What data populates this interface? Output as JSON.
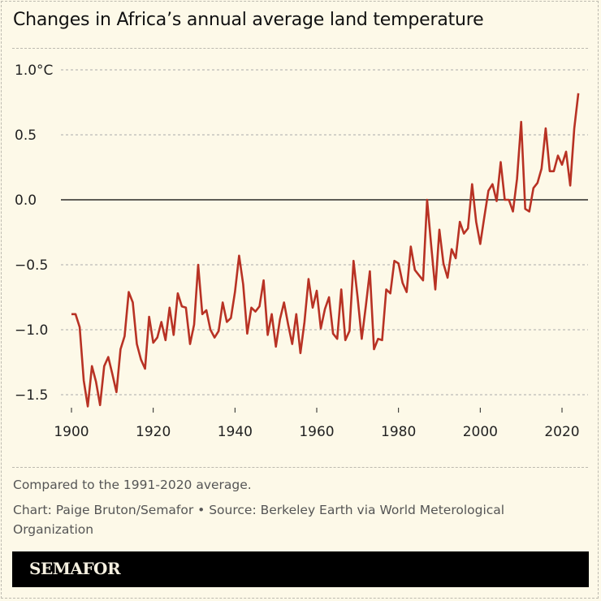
{
  "title": "Changes in Africa’s annual average land temperature",
  "notes": {
    "comparison": "Compared to the 1991-2020 average.",
    "credit": "Chart: Paige Bruton/Semafor • Source: Berkeley Earth via World Meterological Organization"
  },
  "brand": "SEMAFOR",
  "colors": {
    "line": "#b83224",
    "background": "#fdf9e8",
    "zero_line": "#000000",
    "grid": "#aaaaaa"
  },
  "chart_data": {
    "type": "line",
    "title": "Changes in Africa’s annual average land temperature",
    "xlabel": "",
    "ylabel": "",
    "xlim": [
      1900,
      2024
    ],
    "ylim": [
      -1.5,
      1.0
    ],
    "grid": true,
    "y_ticks": [
      1.0,
      0.5,
      0.0,
      -0.5,
      -1.0,
      -1.5
    ],
    "y_tick_labels": [
      "1.0°C",
      "0.5",
      "0.0",
      "−0.5",
      "−1.0",
      "−1.5"
    ],
    "x_ticks": [
      1900,
      1920,
      1940,
      1960,
      1980,
      2000,
      2020
    ],
    "x_tick_labels": [
      "1900",
      "1920",
      "1940",
      "1960",
      "1980",
      "2000",
      "2020"
    ],
    "x_start": 1900,
    "values": [
      -0.88,
      -0.88,
      -0.98,
      -1.39,
      -1.59,
      -1.28,
      -1.4,
      -1.58,
      -1.28,
      -1.21,
      -1.34,
      -1.48,
      -1.15,
      -1.05,
      -0.71,
      -0.79,
      -1.11,
      -1.23,
      -1.3,
      -0.9,
      -1.1,
      -1.06,
      -0.94,
      -1.08,
      -0.83,
      -1.04,
      -0.72,
      -0.82,
      -0.83,
      -1.11,
      -0.96,
      -0.5,
      -0.88,
      -0.85,
      -1.0,
      -1.06,
      -1.01,
      -0.79,
      -0.94,
      -0.91,
      -0.71,
      -0.43,
      -0.65,
      -1.03,
      -0.83,
      -0.86,
      -0.82,
      -0.62,
      -1.04,
      -0.88,
      -1.13,
      -0.92,
      -0.79,
      -0.96,
      -1.11,
      -0.88,
      -1.18,
      -0.94,
      -0.61,
      -0.83,
      -0.7,
      -0.99,
      -0.84,
      -0.75,
      -1.03,
      -1.07,
      -0.69,
      -1.08,
      -1.01,
      -0.47,
      -0.75,
      -1.07,
      -0.82,
      -0.55,
      -1.15,
      -1.07,
      -1.08,
      -0.69,
      -0.72,
      -0.47,
      -0.49,
      -0.64,
      -0.71,
      -0.36,
      -0.54,
      -0.58,
      -0.62,
      0.0,
      -0.35,
      -0.69,
      -0.23,
      -0.49,
      -0.6,
      -0.38,
      -0.45,
      -0.17,
      -0.26,
      -0.22,
      0.12,
      -0.17,
      -0.34,
      -0.13,
      0.07,
      0.12,
      -0.01,
      0.29,
      0.0,
      0.0,
      -0.09,
      0.16,
      0.6,
      -0.07,
      -0.09,
      0.09,
      0.13,
      0.24,
      0.55,
      0.22,
      0.22,
      0.34,
      0.27,
      0.37,
      0.11,
      0.55,
      0.82
    ]
  }
}
